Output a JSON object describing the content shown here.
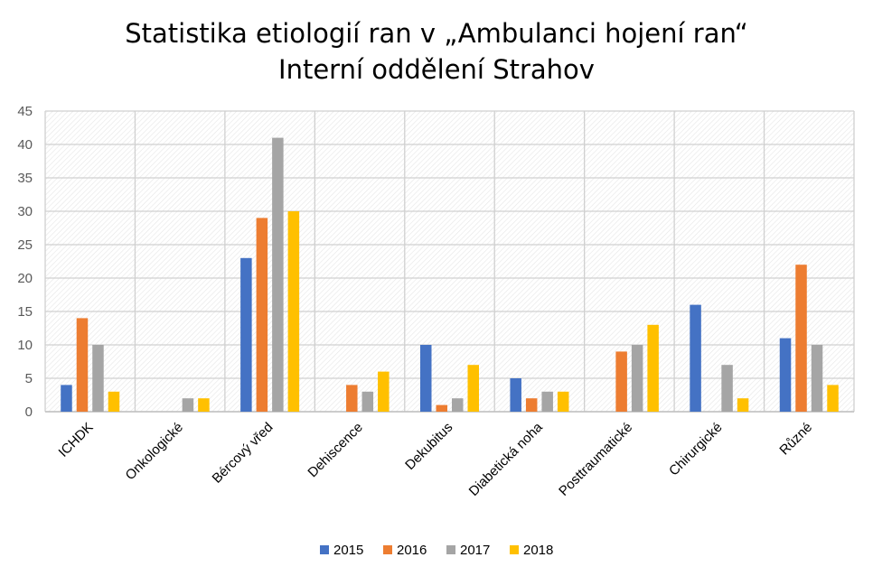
{
  "chart_data": {
    "type": "bar",
    "title": "Statistika etiologií ran v „Ambulanci hojení ran“",
    "subtitle": "Interní oddělení Strahov",
    "categories": [
      "ICHDK",
      "Onkologické",
      "Bércový vřed",
      "Dehiscence",
      "Dekubitus",
      "Diabetická noha",
      "Posttraumatické",
      "Chirurgické",
      "Různé"
    ],
    "series": [
      {
        "name": "2015",
        "color": "#4472C4",
        "values": [
          4,
          0,
          23,
          0,
          10,
          5,
          0,
          16,
          11
        ]
      },
      {
        "name": "2016",
        "color": "#ED7D31",
        "values": [
          14,
          0,
          29,
          4,
          1,
          2,
          9,
          0,
          22
        ]
      },
      {
        "name": "2017",
        "color": "#A5A5A5",
        "values": [
          10,
          2,
          41,
          3,
          2,
          3,
          10,
          7,
          10
        ]
      },
      {
        "name": "2018",
        "color": "#FFC000",
        "values": [
          3,
          2,
          30,
          6,
          7,
          3,
          13,
          2,
          4
        ]
      }
    ],
    "ylim": [
      0,
      45
    ],
    "yticks": [
      0,
      5,
      10,
      15,
      20,
      25,
      30,
      35,
      40,
      45
    ],
    "xlabel": "",
    "ylabel": "",
    "grid": true,
    "legend": "bottom"
  }
}
